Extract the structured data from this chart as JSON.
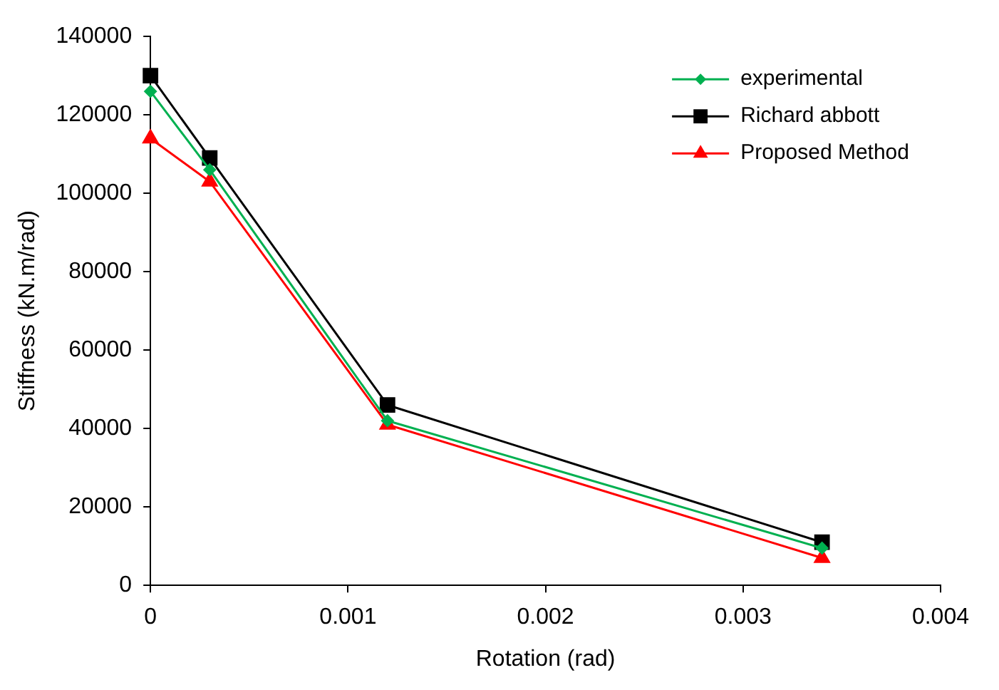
{
  "chart_data": {
    "type": "line",
    "xlabel": "Rotation (rad)",
    "ylabel": "Stiffness (kN.m/rad)",
    "x": [
      0,
      0.0003,
      0.0012,
      0.0034
    ],
    "series": [
      {
        "name": "experimental",
        "color": "#00b050",
        "values": [
          126000,
          106000,
          42000,
          9500
        ],
        "marker": "diamond"
      },
      {
        "name": "Richard abbott",
        "color": "#000000",
        "values": [
          130000,
          109000,
          46000,
          11000
        ],
        "marker": "square"
      },
      {
        "name": "Proposed Method",
        "color": "#ff0000",
        "values": [
          114000,
          103000,
          41000,
          7000
        ],
        "marker": "triangle"
      }
    ],
    "xlim": [
      0,
      0.004
    ],
    "xticks": [
      0,
      0.001,
      0.002,
      0.003,
      0.004
    ],
    "ylim": [
      0,
      140000
    ],
    "yticks": [
      0,
      20000,
      40000,
      60000,
      80000,
      100000,
      120000,
      140000
    ],
    "grid": false,
    "legend": "top right",
    "line_style": "solid"
  }
}
